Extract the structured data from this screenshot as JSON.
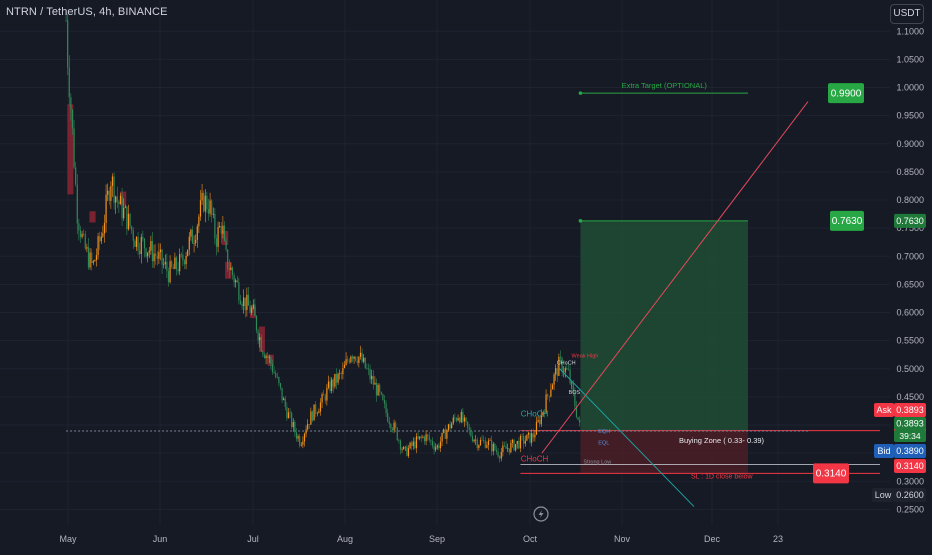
{
  "chart_data": {
    "type": "candlestick",
    "title": "NTRN / TetherUS, 4h, BINANCE",
    "currency": "USDT",
    "y_ticks": [
      "1.1000",
      "1.0500",
      "1.0000",
      "0.9500",
      "0.9000",
      "0.8500",
      "0.8000",
      "0.7500",
      "0.7000",
      "0.6500",
      "0.6000",
      "0.5500",
      "0.5000",
      "0.4500",
      "0.4000",
      "0.3500",
      "0.3000",
      "0.2500"
    ],
    "ylim": [
      0.24,
      1.12
    ],
    "x_ticks": [
      "May",
      "Jun",
      "Jul",
      "Aug",
      "Sep",
      "Oct",
      "Nov",
      "Dec",
      "23"
    ],
    "price_path": [
      {
        "date": "Apr 14",
        "price": 1.12
      },
      {
        "date": "Apr 16",
        "price": 1.06
      },
      {
        "date": "Apr 18",
        "price": 0.96
      },
      {
        "date": "Apr 20",
        "price": 0.78
      },
      {
        "date": "Apr 22",
        "price": 0.72
      },
      {
        "date": "Apr 25",
        "price": 0.68
      },
      {
        "date": "Apr 28",
        "price": 0.74
      },
      {
        "date": "May 1",
        "price": 0.84
      },
      {
        "date": "May 3",
        "price": 0.8
      },
      {
        "date": "May 6",
        "price": 0.77
      },
      {
        "date": "May 9",
        "price": 0.73
      },
      {
        "date": "May 12",
        "price": 0.72
      },
      {
        "date": "May 16",
        "price": 0.7
      },
      {
        "date": "May 20",
        "price": 0.67
      },
      {
        "date": "May 24",
        "price": 0.69
      },
      {
        "date": "May 26",
        "price": 0.72
      },
      {
        "date": "May 28",
        "price": 0.74
      },
      {
        "date": "May 31",
        "price": 0.8
      },
      {
        "date": "Jun 2",
        "price": 0.79
      },
      {
        "date": "Jun 4",
        "price": 0.73
      },
      {
        "date": "Jun 6",
        "price": 0.76
      },
      {
        "date": "Jun 7",
        "price": 0.7
      },
      {
        "date": "Jun 10",
        "price": 0.66
      },
      {
        "date": "Jun 13",
        "price": 0.62
      },
      {
        "date": "Jun 16",
        "price": 0.6
      },
      {
        "date": "Jun 19",
        "price": 0.54
      },
      {
        "date": "Jun 22",
        "price": 0.51
      },
      {
        "date": "Jun 24",
        "price": 0.48
      },
      {
        "date": "Jun 27",
        "price": 0.43
      },
      {
        "date": "Jun 30",
        "price": 0.39
      },
      {
        "date": "Jul 2",
        "price": 0.37
      },
      {
        "date": "Jul 4",
        "price": 0.4
      },
      {
        "date": "Jul 6",
        "price": 0.42
      },
      {
        "date": "Jul 9",
        "price": 0.44
      },
      {
        "date": "Jul 12",
        "price": 0.47
      },
      {
        "date": "Jul 16",
        "price": 0.49
      },
      {
        "date": "Jul 19",
        "price": 0.53
      },
      {
        "date": "Jul 22",
        "price": 0.52
      },
      {
        "date": "Jul 25",
        "price": 0.49
      },
      {
        "date": "Jul 28",
        "price": 0.46
      },
      {
        "date": "Jul 31",
        "price": 0.42
      },
      {
        "date": "Aug 3",
        "price": 0.39
      },
      {
        "date": "Aug 6",
        "price": 0.35
      },
      {
        "date": "Aug 10",
        "price": 0.37
      },
      {
        "date": "Aug 13",
        "price": 0.38
      },
      {
        "date": "Aug 17",
        "price": 0.36
      },
      {
        "date": "Aug 20",
        "price": 0.39
      },
      {
        "date": "Aug 24",
        "price": 0.42
      },
      {
        "date": "Aug 27",
        "price": 0.39
      },
      {
        "date": "Aug 30",
        "price": 0.37
      },
      {
        "date": "Sep 2",
        "price": 0.37
      },
      {
        "date": "Sep 6",
        "price": 0.35
      },
      {
        "date": "Sep 9",
        "price": 0.36
      },
      {
        "date": "Sep 13",
        "price": 0.37
      },
      {
        "date": "Sep 17",
        "price": 0.38
      },
      {
        "date": "Sep 20",
        "price": 0.42
      },
      {
        "date": "Sep 23",
        "price": 0.47
      },
      {
        "date": "Sep 26",
        "price": 0.51
      },
      {
        "date": "Sep 29",
        "price": 0.49
      },
      {
        "date": "Oct 1",
        "price": 0.44
      },
      {
        "date": "Oct 3",
        "price": 0.39
      }
    ],
    "supply_zones": [
      {
        "from": "Apr 16",
        "to": "Apr 18",
        "top": 0.97,
        "bottom": 0.81
      },
      {
        "from": "Apr 24",
        "to": "Apr 26",
        "top": 0.78,
        "bottom": 0.76
      },
      {
        "from": "May 4",
        "to": "May 6",
        "top": 0.815,
        "bottom": 0.79
      },
      {
        "from": "Jun 6",
        "to": "Jun 8",
        "top": 0.745,
        "bottom": 0.72
      },
      {
        "from": "Jun 7",
        "to": "Jun 9",
        "top": 0.69,
        "bottom": 0.66
      },
      {
        "from": "Jun 15",
        "to": "Jun 17",
        "top": 0.61,
        "bottom": 0.59
      },
      {
        "from": "Jun 18",
        "to": "Jun 20",
        "top": 0.575,
        "bottom": 0.53
      },
      {
        "from": "Jun 21",
        "to": "Jun 23",
        "top": 0.525,
        "bottom": 0.505
      }
    ],
    "position": {
      "entry": 0.389,
      "target": 0.763,
      "stop": 0.314,
      "from": "Oct 3",
      "to": "Nov 28",
      "zone_top": 0.39,
      "zone_bottom": 0.33
    },
    "lines": [
      {
        "name": "extra-target-line",
        "price": 0.99,
        "from": "Oct 3",
        "to": "Nov 28",
        "label": "Extra Target (OPTIONAL)"
      },
      {
        "name": "target-line",
        "price": 0.763,
        "from": "Oct 3",
        "to": "Nov 28"
      },
      {
        "name": "last-price-line",
        "price": 0.3893,
        "from": "Apr 14",
        "to": "Dec 18"
      }
    ],
    "trendlines": [
      {
        "name": "projection-line",
        "from": {
          "date": "Sep 20",
          "price": 0.35
        },
        "to": {
          "date": "Dec 18",
          "price": 0.975
        }
      },
      {
        "name": "downtrend-line",
        "from": {
          "date": "Sep 26",
          "price": 0.5
        },
        "to": {
          "date": "Nov 10",
          "price": 0.255
        }
      }
    ],
    "annotations": [
      {
        "name": "weak-high-label",
        "text": "Weak High",
        "date": "Sep 30",
        "price": 0.52
      },
      {
        "name": "choch-label-1",
        "text": "CHoCH",
        "date": "Sep 13",
        "price": 0.415
      },
      {
        "name": "choch-label-2",
        "text": "CHoCH",
        "date": "Sep 13",
        "price": 0.335
      },
      {
        "name": "strong-low-label",
        "text": "Strong Low",
        "date": "Oct 4",
        "price": 0.332
      },
      {
        "name": "choch-small-label",
        "text": "CHoCH",
        "date": "Sep 25",
        "price": 0.508
      },
      {
        "name": "bos-label",
        "text": "BOS",
        "date": "Sep 29",
        "price": 0.455
      },
      {
        "name": "eqh-label",
        "text": "EQH",
        "date": "Oct 9",
        "price": 0.386
      },
      {
        "name": "eql-label",
        "text": "EQL",
        "date": "Oct 9",
        "price": 0.365
      },
      {
        "name": "buying-zone-label",
        "text": "Buying Zone ( 0.33- 0.39)",
        "date": "Nov 5",
        "price": 0.368
      },
      {
        "name": "sl-label",
        "text": "SL : 1D close below",
        "date": "Nov 9",
        "price": 0.305
      }
    ],
    "price_tags": {
      "extra_target": "0.9900",
      "target": "0.7630",
      "stop": "0.3140",
      "axis_target": "0.7630",
      "axis_zone_top": "0.3900",
      "ask_label": "Ask",
      "ask": "0.3893",
      "last": "0.3893",
      "countdown": "39:34",
      "bid_label": "Bid",
      "bid": "0.3890",
      "axis_stop": "0.3140",
      "low_label": "Low",
      "low": "0.2600"
    },
    "colors": {
      "background": "#161a25",
      "up": "#f7931a",
      "down": "#2e8b57",
      "target_zone": "#1f4d35",
      "stop_zone": "#4a1f26",
      "supply": "#8b2634",
      "green_label": "#27a844",
      "red_label": "#f23645",
      "projection": "#e24a5a",
      "downtrend": "#1ca2a0",
      "axis_text": "#b2b5be"
    }
  }
}
